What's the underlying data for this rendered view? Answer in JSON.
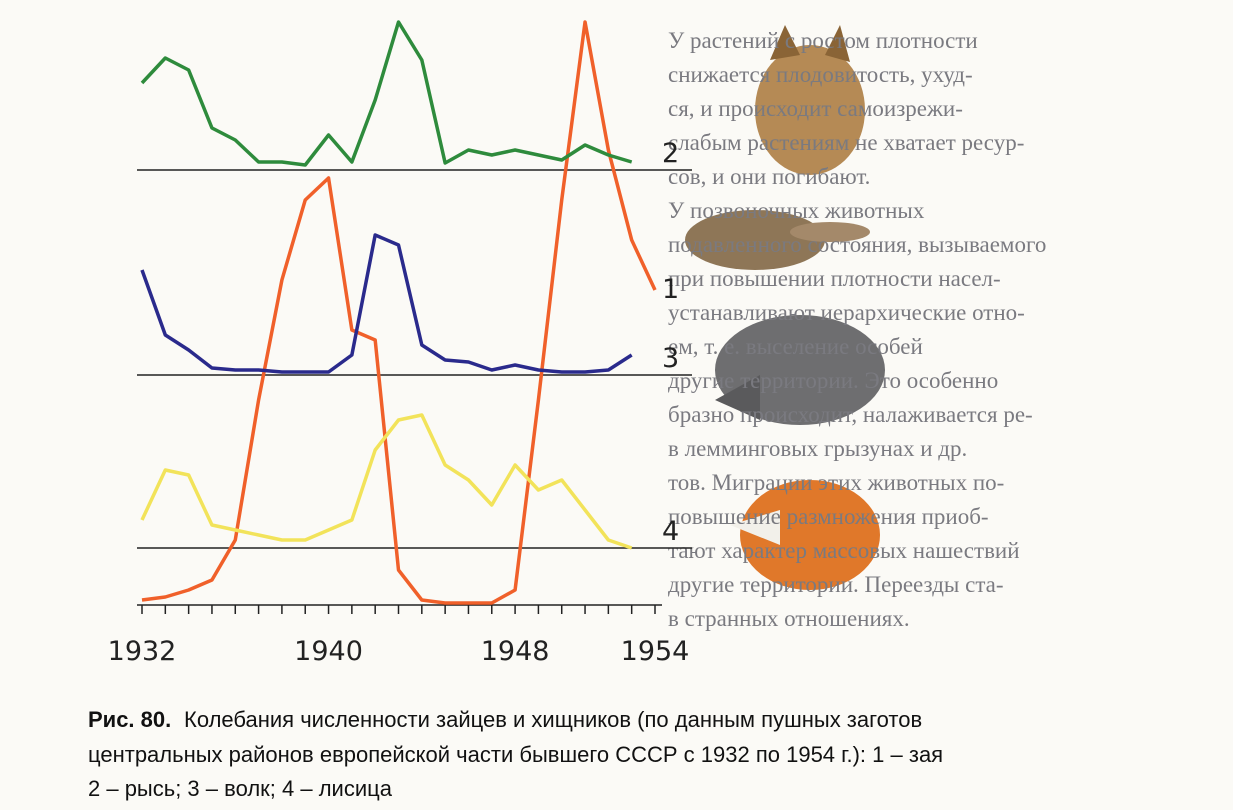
{
  "chart_data": {
    "type": "line",
    "x": [
      1932,
      1933,
      1934,
      1935,
      1936,
      1937,
      1938,
      1939,
      1940,
      1941,
      1942,
      1943,
      1944,
      1945,
      1946,
      1947,
      1948,
      1949,
      1950,
      1951,
      1952,
      1953,
      1954
    ],
    "xlim": [
      1932,
      1954
    ],
    "xticks": [
      1932,
      1940,
      1948,
      1954
    ],
    "series": [
      {
        "name": "1",
        "color": "#f0602a",
        "values": [
          5,
          8,
          15,
          25,
          65,
          205,
          325,
          405,
          427,
          275,
          265,
          35,
          5,
          2,
          2,
          2,
          15,
          205,
          405,
          583,
          455,
          365,
          315
        ]
      },
      {
        "name": "2",
        "color": "#2e8b3c",
        "values": [
          87,
          112,
          100,
          42,
          30,
          8,
          8,
          5,
          35,
          8,
          70,
          148,
          110,
          7,
          20,
          15,
          20,
          15,
          10,
          25,
          15,
          8,
          null
        ]
      },
      {
        "name": "3",
        "color": "#2a2a8c",
        "values": [
          105,
          40,
          25,
          7,
          5,
          5,
          3,
          3,
          3,
          20,
          140,
          130,
          30,
          15,
          13,
          5,
          10,
          5,
          3,
          3,
          5,
          20,
          null
        ]
      },
      {
        "name": "4",
        "color": "#f2e35a",
        "values": [
          28,
          78,
          73,
          23,
          18,
          13,
          8,
          8,
          18,
          28,
          98,
          128,
          133,
          83,
          68,
          43,
          83,
          58,
          68,
          38,
          8,
          0,
          null
        ]
      }
    ],
    "caption": {
      "label": "Рис. 80.",
      "lines": [
        "Колебания численности зайцев и хищников (по данным пушных заготов",
        "центральных районов европейской части бывшего СССР с 1932 по 1954 г.): 1 – зая",
        "2 – рысь; 3 – волк; 4 – лисица"
      ]
    }
  },
  "body_text": [
    "У растений с ростом плотности",
    "снижается плодовитость, ухуд-",
    "ся, и происходит самоизрежи-",
    "слабым растениям не хватает ресур-",
    "сов, и они погибают.",
    "У позвоночных животных",
    "подавленного состояния, вызываемого",
    "при повышении плотности насел-",
    "устанавливают иерархические отно-",
    "ем, т. е. выселение особей",
    "другие территории. Это особенно",
    "бразно происходит, налаживается ре-",
    "в лемминговых грызунах и др.",
    "тов. Миграции этих животных по-",
    "повышение размножения приоб-",
    "тают характер массовых нашествий",
    "другие территории. Переезды ста-",
    "в странных отношениях."
  ]
}
